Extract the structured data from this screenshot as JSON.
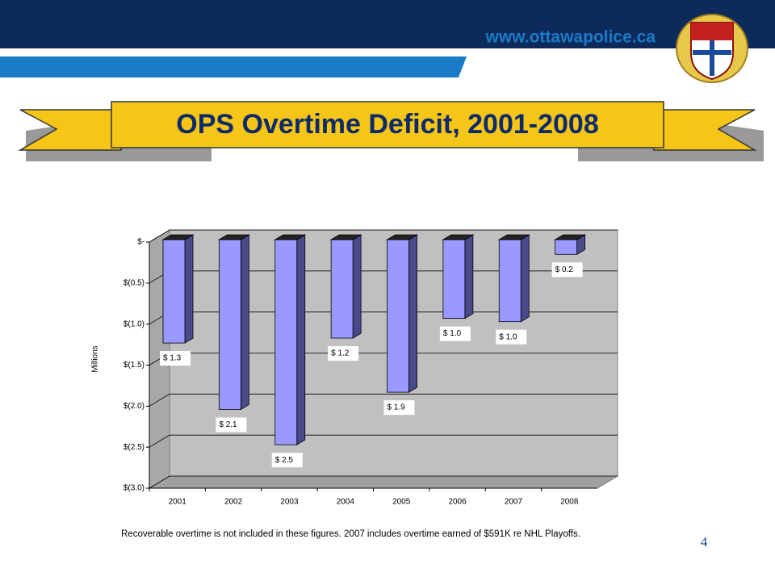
{
  "header": {
    "url": "www.ottawapolice.ca"
  },
  "chart_data": {
    "type": "bar3d",
    "title": "OPS Overtime Deficit, 2001-2008",
    "y_label": "Millions",
    "categories": [
      "2001",
      "2002",
      "2003",
      "2004",
      "2005",
      "2006",
      "2007",
      "2008"
    ],
    "values": [
      -1.26,
      -2.07,
      -2.5,
      -1.2,
      -1.86,
      -0.96,
      -1.0,
      -0.18
    ],
    "value_labels": [
      "$ 1.3",
      "$ 2.1",
      "$ 2.5",
      "$ 1.2",
      "$ 1.9",
      "$ 1.0",
      "$ 1.0",
      "$ 0.2"
    ],
    "color": "#9999ff",
    "ylim": [
      -3,
      0
    ],
    "yticks": [
      {
        "value": 0,
        "label": "$-"
      },
      {
        "value": -0.5,
        "label": "$(0.5)"
      },
      {
        "value": -1,
        "label": "$(1.0)"
      },
      {
        "value": -1.5,
        "label": "$(1.5)"
      },
      {
        "value": -2,
        "label": "$(2.0)"
      },
      {
        "value": -2.5,
        "label": "$(2.5)"
      },
      {
        "value": -3,
        "label": "$(3.0)"
      }
    ],
    "grid": true
  },
  "footnote": "Recoverable overtime is not included in these figures.  2007 includes overtime earned of $591K re NHL Playoffs.",
  "page_number": 4
}
